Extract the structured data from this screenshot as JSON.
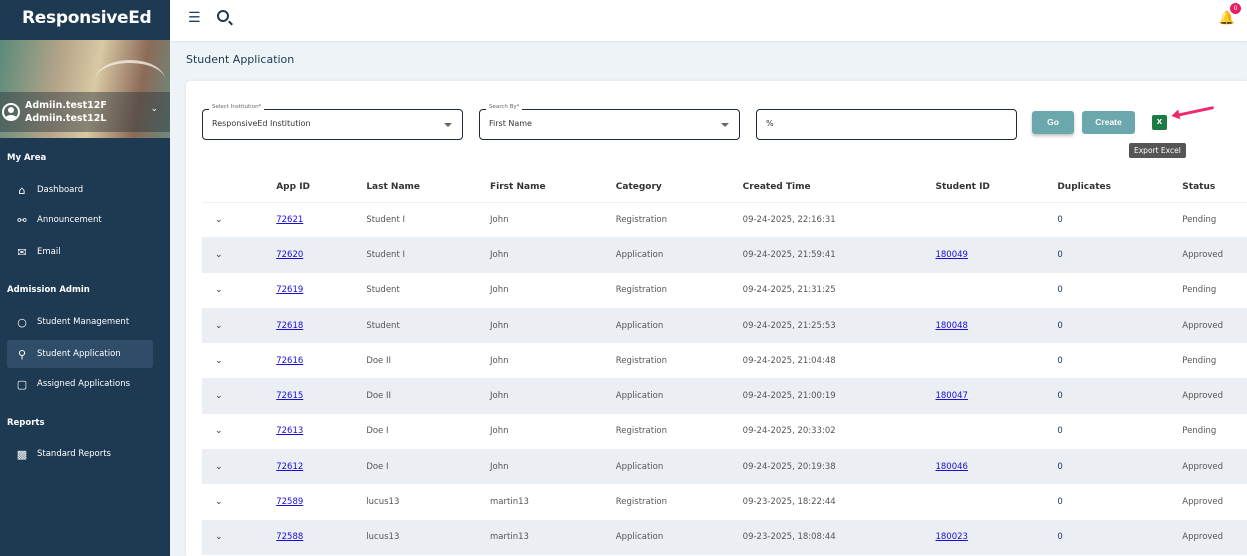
{
  "app": {
    "brand": "ResponsiveEd",
    "user_first": "Admiin.test12F",
    "user_last": "Admiin.test12L",
    "notification_count": "0"
  },
  "sidebar": {
    "sections": [
      {
        "title": "My Area",
        "items": [
          {
            "label": "Dashboard",
            "icon": "home-icon"
          },
          {
            "label": "Announcement",
            "icon": "chat-icon"
          },
          {
            "label": "Email",
            "icon": "mail-icon"
          }
        ]
      },
      {
        "title": "Admission Admin",
        "items": [
          {
            "label": "Student Management",
            "icon": "user-icon"
          },
          {
            "label": "Student Application",
            "icon": "user-search-icon",
            "active": true
          },
          {
            "label": "Assigned Applications",
            "icon": "clipboard-icon"
          }
        ]
      },
      {
        "title": "Reports",
        "items": [
          {
            "label": "Standard Reports",
            "icon": "report-icon"
          }
        ]
      }
    ]
  },
  "page": {
    "title": "Student Application"
  },
  "filters": {
    "institution_label": "Select Institution*",
    "institution_value": "ResponsiveEd Institution",
    "search_by_label": "Search By*",
    "search_by_value": "First Name",
    "search_value": "%",
    "go_label": "Go",
    "create_label": "Create",
    "export_tooltip": "Export Excel"
  },
  "table": {
    "headers": [
      "",
      "App ID",
      "Last Name",
      "First Name",
      "Category",
      "Created Time",
      "Student ID",
      "Duplicates",
      "Status"
    ],
    "rows": [
      [
        "72621",
        "Student I",
        "John",
        "Registration",
        "09-24-2025, 22:16:31",
        "",
        "0",
        "Pending"
      ],
      [
        "72620",
        "Student I",
        "John",
        "Application",
        "09-24-2025, 21:59:41",
        "180049",
        "0",
        "Approved"
      ],
      [
        "72619",
        "Student",
        "John",
        "Registration",
        "09-24-2025, 21:31:25",
        "",
        "0",
        "Pending"
      ],
      [
        "72618",
        "Student",
        "John",
        "Application",
        "09-24-2025, 21:25:53",
        "180048",
        "0",
        "Approved"
      ],
      [
        "72616",
        "Doe II",
        "John",
        "Registration",
        "09-24-2025, 21:04:48",
        "",
        "0",
        "Pending"
      ],
      [
        "72615",
        "Doe II",
        "John",
        "Application",
        "09-24-2025, 21:00:19",
        "180047",
        "0",
        "Approved"
      ],
      [
        "72613",
        "Doe I",
        "John",
        "Registration",
        "09-24-2025, 20:33:02",
        "",
        "0",
        "Pending"
      ],
      [
        "72612",
        "Doe I",
        "John",
        "Application",
        "09-24-2025, 20:19:38",
        "180046",
        "0",
        "Approved"
      ],
      [
        "72589",
        "lucus13",
        "martin13",
        "Registration",
        "09-23-2025, 18:22:44",
        "",
        "0",
        "Approved"
      ],
      [
        "72588",
        "lucus13",
        "martin13",
        "Application",
        "09-23-2025, 18:08:44",
        "180023",
        "0",
        "Approved"
      ]
    ]
  }
}
